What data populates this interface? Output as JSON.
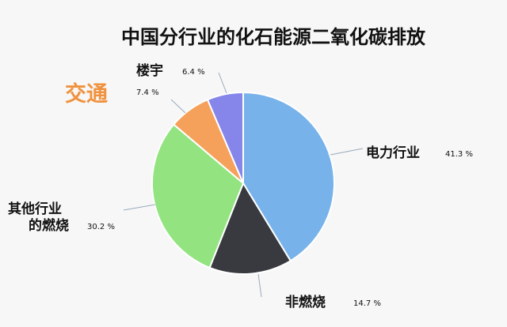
{
  "chart_data": {
    "type": "pie",
    "title": "中国分行业的化石能源二氧化碳排放",
    "slices": [
      {
        "label": "电力行业",
        "value": 41.3,
        "pct_label": "41.3 %",
        "color": "#77b3ea"
      },
      {
        "label": "非燃烧",
        "value": 14.7,
        "pct_label": "14.7 %",
        "color": "#383a3f"
      },
      {
        "label_lines": [
          "其他行业",
          "的燃烧"
        ],
        "value": 30.2,
        "pct_label": "30.2 %",
        "color": "#93e481"
      },
      {
        "label": "交通",
        "value": 7.4,
        "pct_label": "7.4 %",
        "color": "#f5a15c"
      },
      {
        "label": "楼宇",
        "value": 6.4,
        "pct_label": "6.4 %",
        "color": "#8585ea"
      }
    ],
    "legend": "none"
  }
}
